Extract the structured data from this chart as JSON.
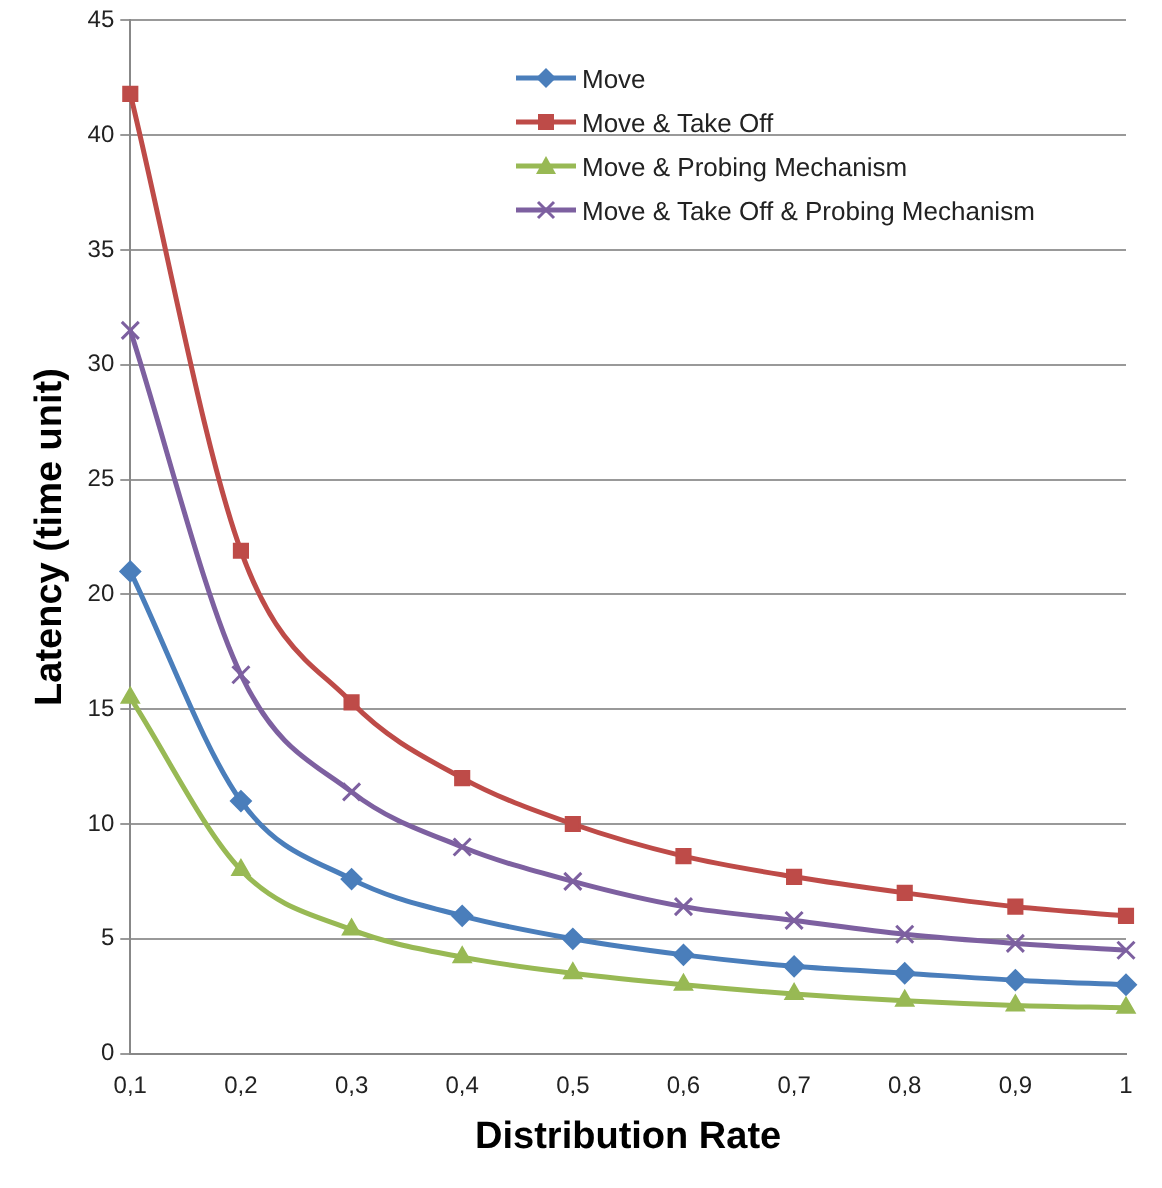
{
  "chart_data": {
    "type": "line",
    "xlabel": "Distribution Rate",
    "ylabel": "Latency (time unit)",
    "categories": [
      "0,1",
      "0,2",
      "0,3",
      "0,4",
      "0,5",
      "0,6",
      "0,7",
      "0,8",
      "0,9",
      "1"
    ],
    "ylim": [
      0,
      45
    ],
    "yticks": [
      0,
      5,
      10,
      15,
      20,
      25,
      30,
      35,
      40,
      45
    ],
    "grid": "y",
    "legend": "top right",
    "series": [
      {
        "name": "Move",
        "color": "#4a7ebb",
        "marker": "diamond",
        "values": [
          21,
          11,
          7.6,
          6,
          5,
          4.3,
          3.8,
          3.5,
          3.2,
          3.0
        ]
      },
      {
        "name": "Move & Take Off",
        "color": "#be4b48",
        "marker": "square",
        "values": [
          41.8,
          21.9,
          15.3,
          12,
          10,
          8.6,
          7.7,
          7,
          6.4,
          6
        ]
      },
      {
        "name": "Move & Probing Mechanism",
        "color": "#98b954",
        "marker": "triangle",
        "values": [
          15.5,
          8,
          5.4,
          4.2,
          3.5,
          3,
          2.6,
          2.3,
          2.1,
          2
        ]
      },
      {
        "name": "Move & Take Off & Probing Mechanism",
        "color": "#7d60a0",
        "marker": "cross",
        "values": [
          31.5,
          16.5,
          11.4,
          9,
          7.5,
          6.4,
          5.8,
          5.2,
          4.8,
          4.5
        ]
      }
    ]
  }
}
